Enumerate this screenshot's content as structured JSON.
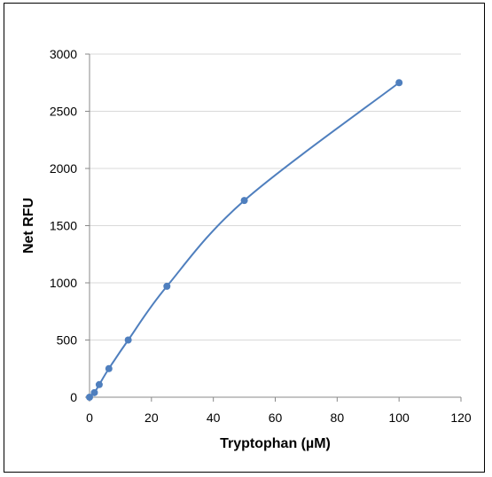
{
  "chart_data": {
    "type": "scatter",
    "title": "",
    "xlabel": "Tryptophan (µM)",
    "ylabel": "Net RFU",
    "xlim": [
      0,
      120
    ],
    "ylim": [
      0,
      3000
    ],
    "x_ticks": [
      0,
      20,
      40,
      60,
      80,
      100,
      120
    ],
    "y_ticks": [
      0,
      500,
      1000,
      1500,
      2000,
      2500,
      3000
    ],
    "grid": "horizontal",
    "legend": "none",
    "series": [
      {
        "x": [
          0,
          1.5625,
          3.125,
          6.25,
          12.5,
          25,
          50,
          100
        ],
        "y": [
          0,
          40,
          110,
          250,
          500,
          970,
          1720,
          2750
        ],
        "color": "#4f7fbe",
        "line": "smoothed",
        "markers": "circle"
      }
    ]
  }
}
